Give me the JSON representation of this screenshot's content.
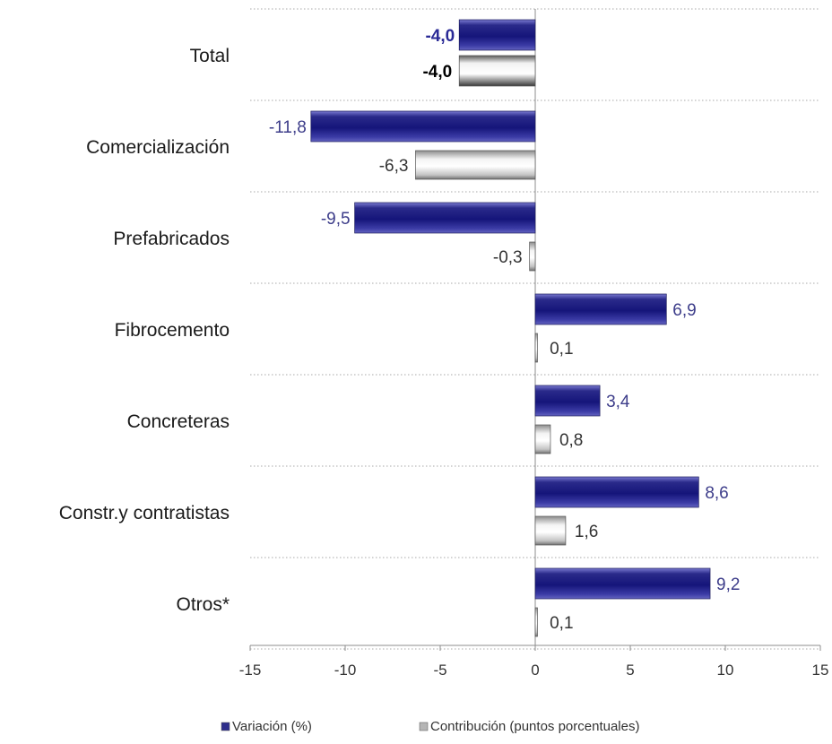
{
  "chart_data": {
    "type": "bar",
    "orientation": "horizontal",
    "categories": [
      "Total",
      "Comercialización",
      "Prefabricados",
      "Fibrocemento",
      "Concreteras",
      "Constr.y contratistas",
      "Otros*"
    ],
    "series": [
      {
        "name": "Variación (%)",
        "color": "#2e2e8c",
        "values": [
          -4.0,
          -11.8,
          -9.5,
          6.9,
          3.4,
          8.6,
          9.2
        ],
        "labels": [
          "-4,0",
          "-11,8",
          "-9,5",
          "6,9",
          "3,4",
          "8,6",
          "9,2"
        ]
      },
      {
        "name": "Contribución (puntos porcentuales)",
        "color": "#b5b5b5",
        "values": [
          -4.0,
          -6.3,
          -0.3,
          0.1,
          0.8,
          1.6,
          0.1
        ],
        "labels": [
          "-4,0",
          "-6,3",
          "-0,3",
          "0,1",
          "0,8",
          "1,6",
          "0,1"
        ]
      }
    ],
    "xlim": [
      -15,
      15
    ],
    "xticks": [
      -15,
      -10,
      -5,
      0,
      5,
      10,
      15
    ],
    "xtick_labels": [
      "-15",
      "-10",
      "-5",
      "0",
      "5",
      "10",
      "15"
    ],
    "grid": "horizontal dotted separators between categories",
    "legend": "bottom",
    "highlight_category": "Total"
  }
}
